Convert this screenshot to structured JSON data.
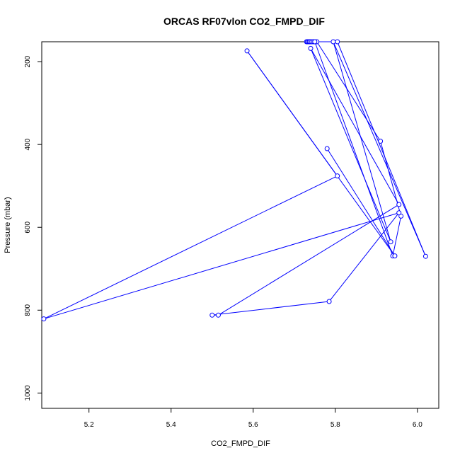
{
  "chart_data": {
    "type": "line",
    "title": "ORCAS RF07vlon CO2_FMPD_DIF",
    "xlabel": "CO2_FMPD_DIF",
    "ylabel": "Pressure (mbar)",
    "xlim": [
      5.085,
      6.052
    ],
    "ylim": [
      1037,
      152
    ],
    "y_reversed": true,
    "x_ticks": [
      5.2,
      5.4,
      5.6,
      5.8,
      6.0
    ],
    "x_tick_labels": [
      "5.2",
      "5.4",
      "5.6",
      "5.8",
      "6.0"
    ],
    "y_ticks": [
      200,
      400,
      600,
      800,
      1000
    ],
    "y_tick_labels": [
      "200",
      "400",
      "600",
      "800",
      "1000"
    ],
    "grid": false,
    "markers": "open-circle",
    "series": [
      {
        "color": "#0000ff",
        "points": [
          [
            5.73,
            150
          ],
          [
            5.732,
            150
          ],
          [
            5.735,
            150
          ],
          [
            5.737,
            150
          ],
          [
            5.74,
            150
          ],
          [
            5.743,
            150
          ],
          [
            5.747,
            150
          ],
          [
            5.75,
            150
          ],
          [
            5.755,
            150
          ],
          [
            5.91,
            392
          ],
          [
            5.96,
            573
          ],
          [
            5.94,
            669
          ],
          [
            5.75,
            150
          ],
          [
            5.805,
            150
          ],
          [
            6.02,
            670
          ],
          [
            5.795,
            150
          ],
          [
            5.935,
            635
          ],
          [
            5.74,
            168
          ],
          [
            5.955,
            545
          ],
          [
            5.515,
            812
          ],
          [
            5.5,
            812
          ],
          [
            5.785,
            779
          ],
          [
            5.955,
            565
          ],
          [
            5.09,
            821
          ],
          [
            5.805,
            476
          ],
          [
            5.585,
            174
          ],
          [
            5.945,
            669
          ],
          [
            5.78,
            410
          ]
        ]
      }
    ]
  }
}
